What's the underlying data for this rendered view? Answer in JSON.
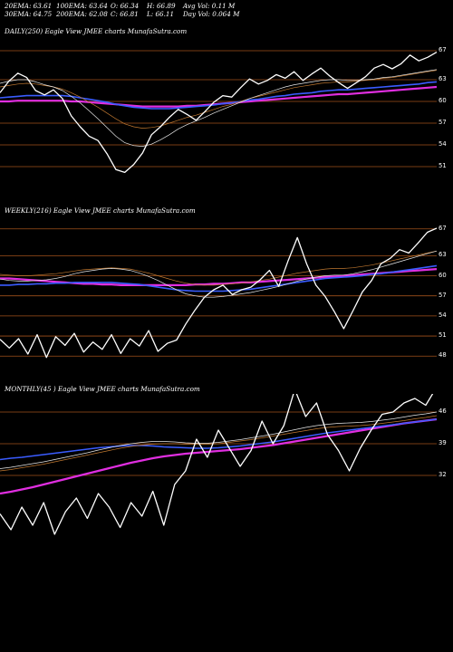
{
  "header_stats": {
    "ema20": "20EMA: 63.61",
    "ema30": "30EMA: 64.75",
    "ema100": "100EMA: 63.64",
    "ema200": "200EMA: 62.08",
    "open": "O: 66.34",
    "close": "C: 66.81",
    "high": "H: 66.89",
    "low": "L: 66.11",
    "avg_vol": "Avg Vol: 0.11  M",
    "day_vol": "Day Vol: 0.064  M"
  },
  "colors": {
    "price": "#ffffff",
    "ema_blue": "#3a5cff",
    "ema_magenta": "#e02ee0",
    "ema_orange": "#c07830",
    "ema_white": "#e8e8e8",
    "grid": "#a0501a"
  },
  "chart_data": [
    {
      "type": "line",
      "title": "DAILY(250) Eagle  View  JMEE charts MunafaSutra.com",
      "ticks": [
        "67",
        "63",
        "60",
        "57",
        "54",
        "51"
      ],
      "ylim": [
        49,
        69
      ],
      "series": [
        {
          "role": "price",
          "values": [
            61.2,
            62.8,
            63.9,
            63.3,
            61.5,
            60.9,
            61.6,
            60.4,
            58.0,
            56.5,
            55.2,
            54.6,
            52.8,
            50.6,
            50.2,
            51.3,
            52.9,
            55.4,
            56.5,
            57.8,
            58.9,
            58.2,
            57.4,
            58.6,
            59.9,
            60.8,
            60.6,
            61.9,
            63.1,
            62.4,
            62.9,
            63.7,
            63.2,
            64.1,
            62.9,
            63.8,
            64.6,
            63.5,
            62.6,
            61.8,
            62.6,
            63.4,
            64.6,
            65.1,
            64.5,
            65.2,
            66.4,
            65.6,
            66.1,
            66.8
          ]
        },
        {
          "role": "ema20",
          "values": [
            62.5,
            62.8,
            63.0,
            63.0,
            62.7,
            62.3,
            62.0,
            61.5,
            60.7,
            59.8,
            58.7,
            57.6,
            56.4,
            55.2,
            54.3,
            53.9,
            53.8,
            54.1,
            54.7,
            55.4,
            56.2,
            56.8,
            57.3,
            57.8,
            58.4,
            58.9,
            59.4,
            59.9,
            60.4,
            60.8,
            61.2,
            61.6,
            62.0,
            62.3,
            62.5,
            62.7,
            62.9,
            63.0,
            63.0,
            62.9,
            62.9,
            63.0,
            63.1,
            63.3,
            63.4,
            63.6,
            63.8,
            64.0,
            64.2,
            64.4
          ]
        },
        {
          "role": "ema30",
          "values": [
            62.0,
            62.2,
            62.4,
            62.5,
            62.4,
            62.2,
            62.0,
            61.7,
            61.2,
            60.6,
            59.9,
            59.2,
            58.4,
            57.6,
            56.9,
            56.5,
            56.3,
            56.4,
            56.6,
            57.0,
            57.4,
            57.8,
            58.1,
            58.5,
            58.9,
            59.3,
            59.6,
            60.0,
            60.4,
            60.7,
            61.0,
            61.3,
            61.6,
            61.9,
            62.1,
            62.3,
            62.5,
            62.6,
            62.7,
            62.7,
            62.8,
            62.9,
            63.0,
            63.2,
            63.3,
            63.5,
            63.7,
            63.9,
            64.1,
            64.3
          ]
        },
        {
          "role": "ema100",
          "values": [
            60.5,
            60.6,
            60.7,
            60.8,
            60.8,
            60.8,
            60.8,
            60.8,
            60.7,
            60.5,
            60.3,
            60.1,
            59.9,
            59.6,
            59.4,
            59.2,
            59.1,
            59.0,
            59.0,
            59.0,
            59.1,
            59.2,
            59.3,
            59.4,
            59.5,
            59.7,
            59.8,
            60.0,
            60.2,
            60.3,
            60.5,
            60.7,
            60.8,
            61.0,
            61.1,
            61.2,
            61.4,
            61.5,
            61.6,
            61.6,
            61.7,
            61.8,
            61.9,
            62.0,
            62.1,
            62.2,
            62.3,
            62.4,
            62.6,
            62.7
          ]
        },
        {
          "role": "ema200",
          "values": [
            60.0,
            60.0,
            60.1,
            60.1,
            60.1,
            60.1,
            60.1,
            60.1,
            60.0,
            60.0,
            59.9,
            59.8,
            59.7,
            59.6,
            59.5,
            59.4,
            59.3,
            59.3,
            59.3,
            59.3,
            59.3,
            59.4,
            59.4,
            59.5,
            59.6,
            59.7,
            59.8,
            59.9,
            60.0,
            60.1,
            60.2,
            60.3,
            60.4,
            60.5,
            60.6,
            60.7,
            60.8,
            60.9,
            61.0,
            61.0,
            61.1,
            61.2,
            61.3,
            61.4,
            61.5,
            61.6,
            61.7,
            61.8,
            61.9,
            62.0
          ]
        }
      ]
    },
    {
      "type": "line",
      "title": "WEEKLY(216) Eagle  View  JMEE charts MunafaSutra.com",
      "ticks": [
        "67",
        "63",
        "60",
        "57",
        "54",
        "51",
        "48"
      ],
      "ylim": [
        46,
        69
      ],
      "series": [
        {
          "role": "price",
          "values": [
            50.5,
            49.2,
            50.6,
            48.3,
            51.2,
            47.8,
            50.9,
            49.6,
            51.4,
            48.6,
            50.1,
            49.0,
            51.2,
            48.4,
            50.6,
            49.5,
            51.8,
            48.7,
            49.9,
            50.4,
            52.8,
            54.9,
            56.8,
            57.9,
            58.6,
            57.2,
            57.9,
            58.3,
            59.4,
            60.8,
            58.4,
            62.2,
            65.7,
            61.8,
            58.6,
            56.9,
            54.6,
            52.1,
            54.8,
            57.6,
            59.3,
            61.8,
            62.6,
            63.9,
            63.4,
            64.9,
            66.5,
            67.1
          ]
        },
        {
          "role": "ema20",
          "values": [
            59.5,
            59.3,
            59.2,
            59.2,
            59.3,
            59.4,
            59.6,
            59.9,
            60.3,
            60.6,
            60.8,
            61.0,
            61.1,
            61.0,
            60.8,
            60.4,
            59.9,
            59.3,
            58.6,
            57.9,
            57.3,
            57.0,
            56.8,
            56.8,
            56.9,
            57.1,
            57.3,
            57.5,
            57.8,
            58.1,
            58.4,
            58.8,
            59.2,
            59.5,
            59.8,
            60.0,
            60.1,
            60.1,
            60.3,
            60.6,
            60.9,
            61.3,
            61.7,
            62.1,
            62.5,
            62.9,
            63.3,
            63.7
          ]
        },
        {
          "role": "ema30",
          "values": [
            60.2,
            60.1,
            60.0,
            60.0,
            60.1,
            60.2,
            60.3,
            60.5,
            60.7,
            60.9,
            61.0,
            61.1,
            61.2,
            61.1,
            61.0,
            60.7,
            60.4,
            60.0,
            59.6,
            59.2,
            58.9,
            58.7,
            58.6,
            58.6,
            58.7,
            58.8,
            58.9,
            59.1,
            59.3,
            59.5,
            59.8,
            60.1,
            60.4,
            60.6,
            60.8,
            61.0,
            61.1,
            61.1,
            61.2,
            61.4,
            61.6,
            61.9,
            62.2,
            62.5,
            62.8,
            63.1,
            63.4,
            63.7
          ]
        },
        {
          "role": "ema100",
          "values": [
            58.6,
            58.6,
            58.7,
            58.7,
            58.8,
            58.8,
            58.9,
            58.9,
            59.0,
            59.0,
            59.0,
            59.0,
            59.0,
            58.9,
            58.8,
            58.7,
            58.5,
            58.3,
            58.1,
            57.9,
            57.8,
            57.7,
            57.7,
            57.7,
            57.7,
            57.8,
            57.9,
            58.0,
            58.2,
            58.4,
            58.6,
            58.8,
            59.0,
            59.2,
            59.4,
            59.6,
            59.7,
            59.8,
            59.9,
            60.0,
            60.2,
            60.3,
            60.5,
            60.7,
            60.9,
            61.1,
            61.3,
            61.5
          ]
        },
        {
          "role": "ema200",
          "values": [
            59.6,
            59.6,
            59.5,
            59.4,
            59.3,
            59.2,
            59.1,
            59.0,
            58.9,
            58.8,
            58.8,
            58.7,
            58.7,
            58.6,
            58.6,
            58.6,
            58.6,
            58.6,
            58.6,
            58.6,
            58.6,
            58.7,
            58.7,
            58.8,
            58.8,
            58.9,
            59.0,
            59.0,
            59.1,
            59.2,
            59.3,
            59.4,
            59.5,
            59.6,
            59.7,
            59.8,
            59.9,
            60.0,
            60.1,
            60.2,
            60.3,
            60.4,
            60.5,
            60.6,
            60.7,
            60.8,
            60.9,
            61.0
          ]
        }
      ]
    },
    {
      "type": "line",
      "title": "MONTHLY(45                          ) Eagle  View  JMEE charts MunafaSutra.com",
      "ticks": [
        "46",
        "39",
        "32"
      ],
      "ylim": [
        10,
        50
      ],
      "series": [
        {
          "role": "price",
          "values": [
            23.5,
            20.0,
            25.0,
            21.0,
            26.0,
            19.0,
            24.0,
            27.0,
            22.5,
            28.0,
            25.0,
            20.5,
            26.0,
            23.0,
            28.5,
            21.0,
            30.0,
            33.0,
            40.0,
            36.0,
            42.0,
            38.0,
            34.0,
            37.5,
            44.0,
            39.0,
            43.0,
            51.0,
            45.0,
            48.0,
            41.0,
            37.5,
            33.0,
            38.0,
            42.0,
            45.5,
            46.0,
            48.0,
            49.0,
            47.5,
            51.5
          ]
        },
        {
          "role": "ema20",
          "values": [
            33.5,
            33.8,
            34.2,
            34.6,
            35.0,
            35.5,
            36.0,
            36.5,
            37.0,
            37.6,
            38.1,
            38.6,
            39.0,
            39.3,
            39.5,
            39.5,
            39.4,
            39.2,
            39.1,
            39.1,
            39.3,
            39.6,
            39.9,
            40.3,
            40.7,
            41.1,
            41.6,
            42.1,
            42.6,
            43.0,
            43.3,
            43.5,
            43.6,
            43.7,
            43.9,
            44.2,
            44.5,
            44.9,
            45.3,
            45.6,
            46.0
          ]
        },
        {
          "role": "ema30",
          "values": [
            33.0,
            33.3,
            33.7,
            34.1,
            34.5,
            35.0,
            35.5,
            36.0,
            36.5,
            37.0,
            37.5,
            38.0,
            38.4,
            38.7,
            38.9,
            39.0,
            39.0,
            38.9,
            38.9,
            38.9,
            39.0,
            39.3,
            39.6,
            39.9,
            40.3,
            40.7,
            41.1,
            41.5,
            41.9,
            42.3,
            42.6,
            42.8,
            42.9,
            43.0,
            43.2,
            43.5,
            43.8,
            44.1,
            44.5,
            44.8,
            45.2
          ]
        },
        {
          "role": "ema100",
          "values": [
            35.5,
            35.8,
            36.0,
            36.3,
            36.6,
            36.9,
            37.2,
            37.5,
            37.8,
            38.1,
            38.3,
            38.5,
            38.6,
            38.6,
            38.5,
            38.3,
            38.2,
            38.1,
            38.0,
            38.0,
            38.1,
            38.3,
            38.5,
            38.8,
            39.1,
            39.4,
            39.8,
            40.2,
            40.6,
            41.0,
            41.4,
            41.7,
            42.0,
            42.3,
            42.6,
            42.9,
            43.2,
            43.5,
            43.8,
            44.1,
            44.4
          ]
        },
        {
          "role": "ema200",
          "values": [
            28.0,
            28.4,
            28.9,
            29.4,
            30.0,
            30.6,
            31.2,
            31.8,
            32.4,
            33.0,
            33.6,
            34.2,
            34.8,
            35.3,
            35.8,
            36.2,
            36.5,
            36.8,
            37.0,
            37.2,
            37.4,
            37.6,
            37.8,
            38.1,
            38.4,
            38.7,
            39.1,
            39.5,
            39.9,
            40.3,
            40.7,
            41.1,
            41.5,
            41.9,
            42.3,
            42.7,
            43.1,
            43.5,
            43.8,
            44.1,
            44.4
          ]
        }
      ]
    }
  ]
}
